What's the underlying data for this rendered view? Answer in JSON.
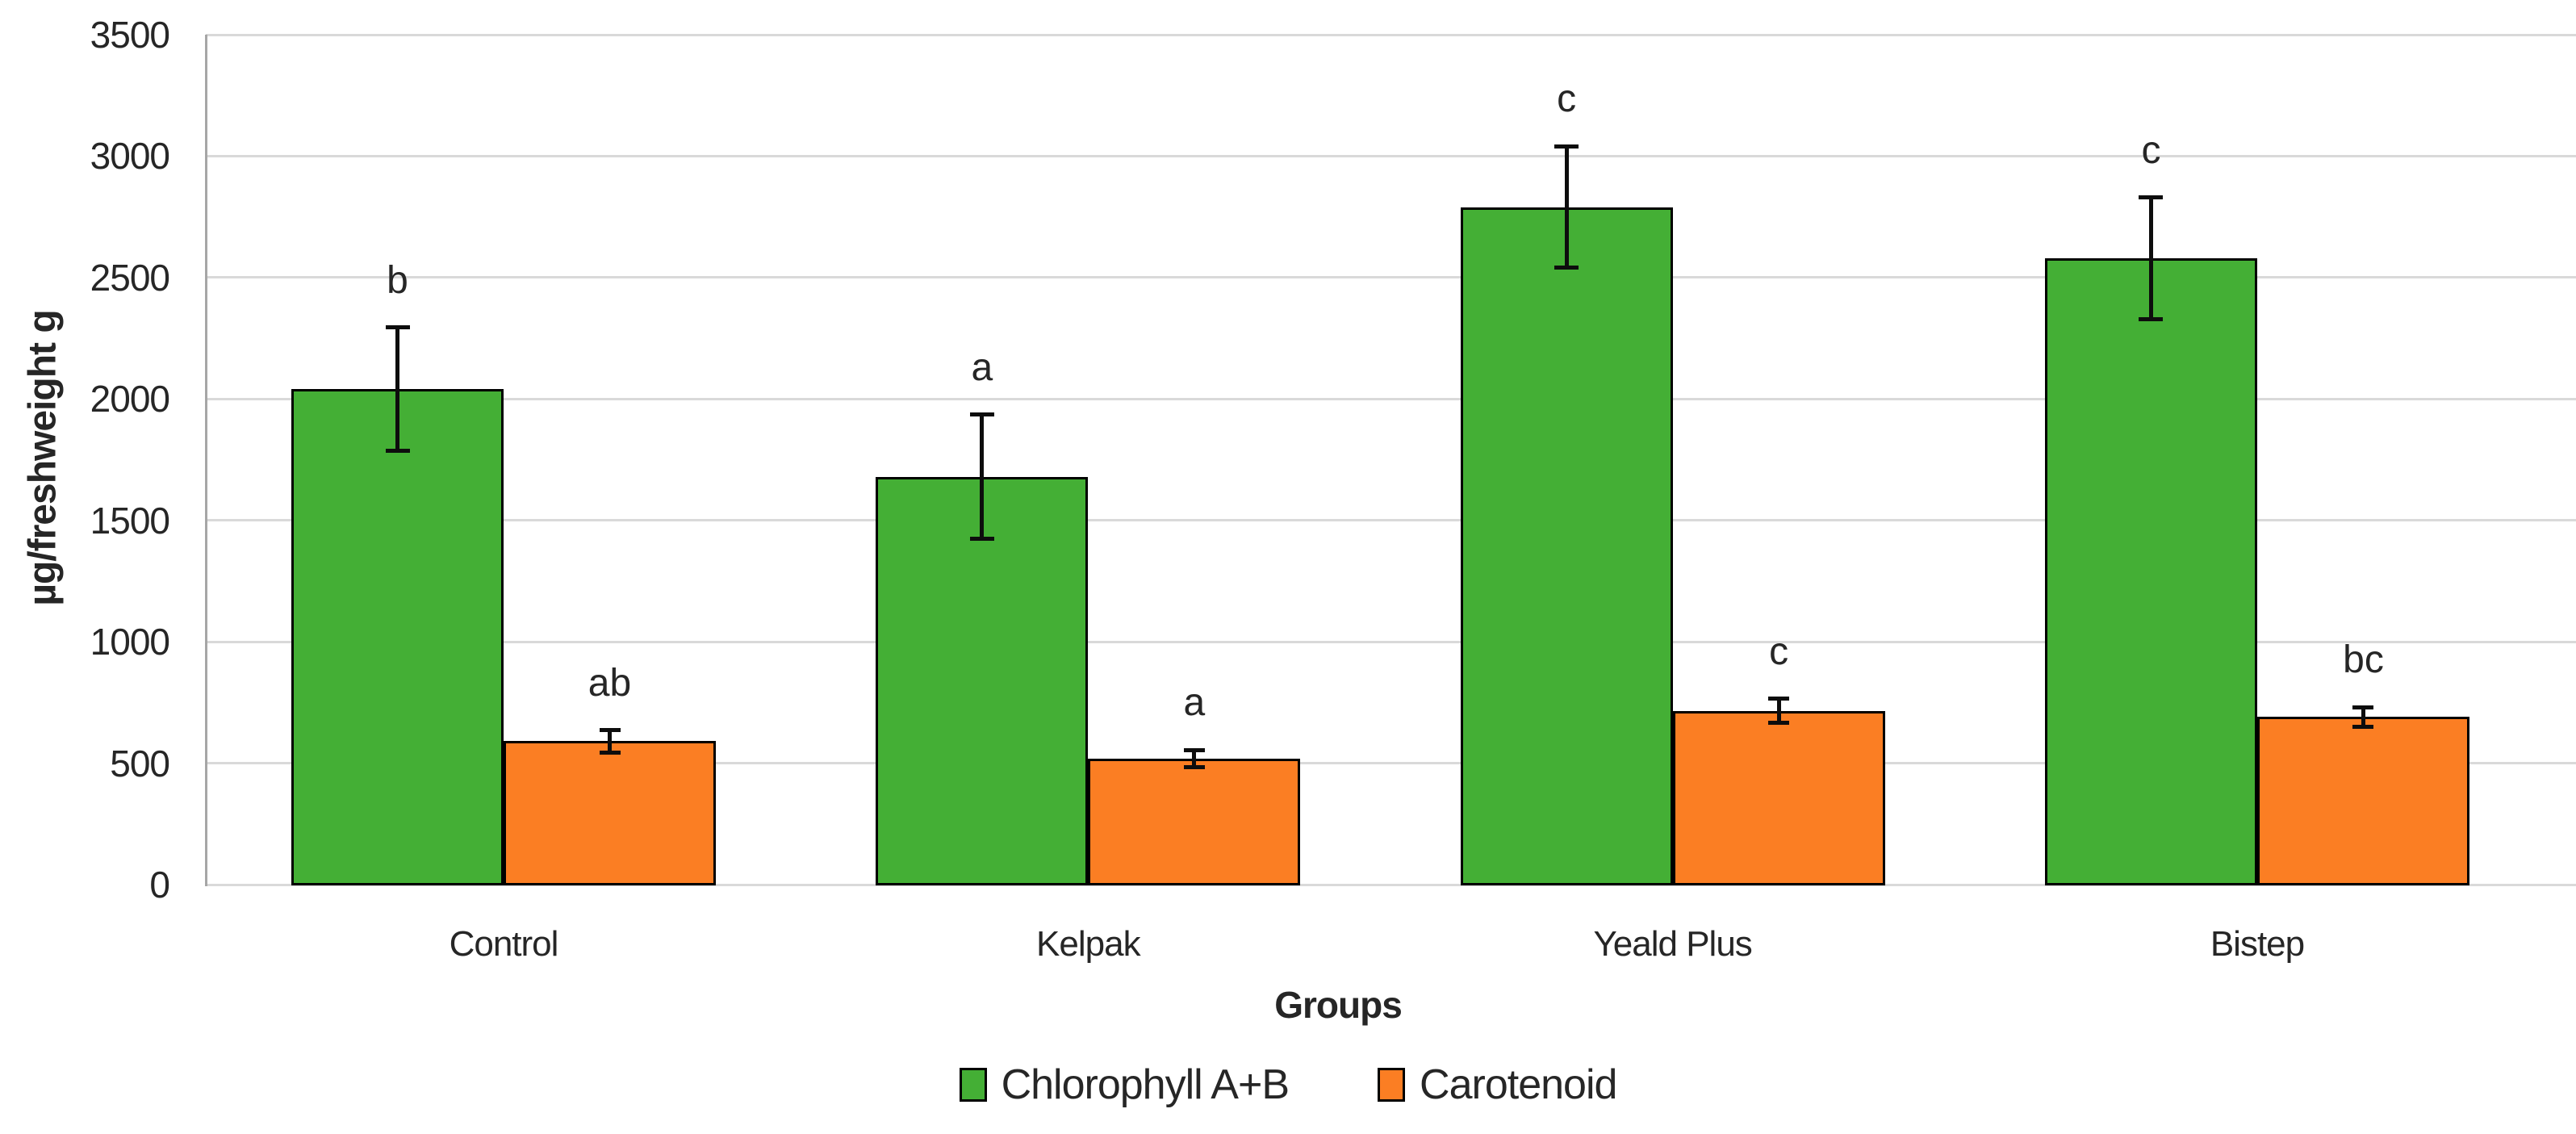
{
  "chart_data": {
    "type": "bar",
    "categories": [
      "Control",
      "Kelpak",
      "Yeald Plus",
      "Bistep"
    ],
    "series": [
      {
        "name": "Chlorophyll A+B",
        "color": "#44AF35",
        "values": [
          2040,
          1680,
          2790,
          2580
        ],
        "errors": [
          255,
          255,
          250,
          250
        ],
        "sig_letters": [
          "b",
          "a",
          "c",
          "c"
        ]
      },
      {
        "name": "Carotenoid",
        "color": "#FB7E23",
        "values": [
          590,
          520,
          715,
          690
        ],
        "errors": [
          45,
          35,
          50,
          40
        ],
        "sig_letters": [
          "ab",
          "a",
          "c",
          "bc"
        ]
      }
    ],
    "xlabel": "Groups",
    "ylabel": "µg/freshweight g",
    "ylim": [
      0,
      3500
    ],
    "yticks": [
      0,
      500,
      1000,
      1500,
      2000,
      2500,
      3000,
      3500
    ],
    "grid": true,
    "legend_position": "bottom",
    "colors": {
      "gridline": "#D9D9D9",
      "axis_line": "#A6A6A6",
      "bar_border": "#000000",
      "error_bar": "#0D0D0D",
      "text": "#262626"
    }
  }
}
